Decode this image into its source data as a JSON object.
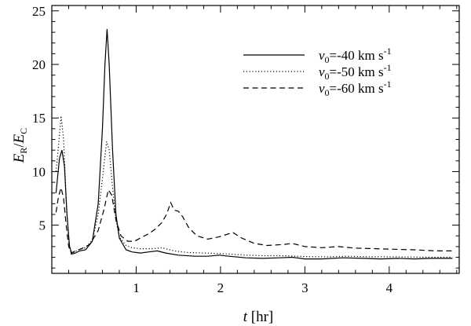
{
  "chart_data": {
    "type": "line",
    "title": "",
    "xlabel": {
      "italic": "t",
      "rest": " [hr]"
    },
    "ylabel": {
      "main1": "E",
      "sub1": "R",
      "slash": "/",
      "main2": "E",
      "sub2": "C"
    },
    "xlim": [
      0.0,
      4.83
    ],
    "ylim": [
      0.5,
      25.5
    ],
    "xticks": [
      {
        "value": 1,
        "label": "1"
      },
      {
        "value": 2,
        "label": "2"
      },
      {
        "value": 3,
        "label": "3"
      },
      {
        "value": 4,
        "label": "4"
      }
    ],
    "yticks": [
      {
        "value": 5,
        "label": "5"
      },
      {
        "value": 10,
        "label": "10"
      },
      {
        "value": 15,
        "label": "15"
      },
      {
        "value": 20,
        "label": "20"
      },
      {
        "value": 25,
        "label": "25"
      }
    ],
    "x_minor_step": 0.2,
    "y_minor_step": 1,
    "grid": false,
    "legend_position": "top-right",
    "series": [
      {
        "var": "v",
        "sub": "0",
        "label": "=-40 km s",
        "sup": "-1",
        "style": "solid",
        "color": "#000000",
        "points": [
          [
            0.05,
            8.0
          ],
          [
            0.09,
            11.2
          ],
          [
            0.12,
            12.0
          ],
          [
            0.15,
            10.5
          ],
          [
            0.18,
            6.0
          ],
          [
            0.21,
            3.0
          ],
          [
            0.24,
            2.3
          ],
          [
            0.28,
            2.4
          ],
          [
            0.33,
            2.6
          ],
          [
            0.4,
            2.7
          ],
          [
            0.48,
            3.5
          ],
          [
            0.55,
            7.0
          ],
          [
            0.6,
            14.0
          ],
          [
            0.63,
            20.0
          ],
          [
            0.655,
            23.3
          ],
          [
            0.68,
            20.0
          ],
          [
            0.72,
            12.0
          ],
          [
            0.76,
            6.0
          ],
          [
            0.8,
            3.8
          ],
          [
            0.88,
            2.7
          ],
          [
            0.95,
            2.5
          ],
          [
            1.05,
            2.4
          ],
          [
            1.15,
            2.5
          ],
          [
            1.25,
            2.6
          ],
          [
            1.35,
            2.4
          ],
          [
            1.5,
            2.2
          ],
          [
            1.7,
            2.1
          ],
          [
            1.85,
            2.1
          ],
          [
            1.98,
            2.2
          ],
          [
            2.1,
            2.1
          ],
          [
            2.3,
            1.95
          ],
          [
            2.5,
            1.9
          ],
          [
            2.7,
            1.95
          ],
          [
            2.85,
            2.0
          ],
          [
            3.0,
            1.85
          ],
          [
            3.2,
            1.85
          ],
          [
            3.45,
            1.95
          ],
          [
            3.7,
            1.9
          ],
          [
            3.9,
            1.85
          ],
          [
            4.1,
            1.9
          ],
          [
            4.3,
            1.85
          ],
          [
            4.5,
            1.9
          ],
          [
            4.75,
            1.9
          ]
        ]
      },
      {
        "var": "v",
        "sub": "0",
        "label": "=-50 km s",
        "sup": "-1",
        "style": "dotted",
        "color": "#000000",
        "points": [
          [
            0.05,
            10.0
          ],
          [
            0.08,
            12.5
          ],
          [
            0.11,
            15.2
          ],
          [
            0.14,
            13.0
          ],
          [
            0.17,
            7.5
          ],
          [
            0.2,
            3.5
          ],
          [
            0.23,
            2.3
          ],
          [
            0.27,
            2.5
          ],
          [
            0.32,
            2.7
          ],
          [
            0.4,
            2.9
          ],
          [
            0.48,
            3.6
          ],
          [
            0.55,
            6.0
          ],
          [
            0.61,
            10.0
          ],
          [
            0.65,
            12.8
          ],
          [
            0.68,
            12.0
          ],
          [
            0.72,
            8.5
          ],
          [
            0.76,
            5.5
          ],
          [
            0.8,
            3.9
          ],
          [
            0.88,
            3.1
          ],
          [
            0.95,
            2.9
          ],
          [
            1.05,
            2.8
          ],
          [
            1.2,
            2.8
          ],
          [
            1.3,
            2.9
          ],
          [
            1.45,
            2.6
          ],
          [
            1.6,
            2.45
          ],
          [
            1.8,
            2.4
          ],
          [
            1.98,
            2.35
          ],
          [
            2.1,
            2.3
          ],
          [
            2.3,
            2.2
          ],
          [
            2.5,
            2.15
          ],
          [
            2.7,
            2.15
          ],
          [
            2.9,
            2.1
          ],
          [
            3.1,
            2.05
          ],
          [
            3.3,
            2.05
          ],
          [
            3.5,
            2.1
          ],
          [
            3.8,
            2.05
          ],
          [
            4.1,
            2.05
          ],
          [
            4.4,
            2.0
          ],
          [
            4.75,
            2.0
          ]
        ]
      },
      {
        "var": "v",
        "sub": "0",
        "label": "=-60 km s",
        "sup": "-1",
        "style": "dashed",
        "color": "#000000",
        "points": [
          [
            0.05,
            6.2
          ],
          [
            0.08,
            7.7
          ],
          [
            0.11,
            8.5
          ],
          [
            0.14,
            7.5
          ],
          [
            0.17,
            5.0
          ],
          [
            0.2,
            3.0
          ],
          [
            0.23,
            2.4
          ],
          [
            0.28,
            2.6
          ],
          [
            0.35,
            2.8
          ],
          [
            0.45,
            3.2
          ],
          [
            0.55,
            4.5
          ],
          [
            0.62,
            6.5
          ],
          [
            0.67,
            8.3
          ],
          [
            0.71,
            7.8
          ],
          [
            0.76,
            5.5
          ],
          [
            0.82,
            4.0
          ],
          [
            0.9,
            3.5
          ],
          [
            0.98,
            3.5
          ],
          [
            1.05,
            3.8
          ],
          [
            1.15,
            4.2
          ],
          [
            1.22,
            4.6
          ],
          [
            1.3,
            5.2
          ],
          [
            1.36,
            6.0
          ],
          [
            1.41,
            7.1
          ],
          [
            1.45,
            6.4
          ],
          [
            1.5,
            6.3
          ],
          [
            1.55,
            5.8
          ],
          [
            1.62,
            4.8
          ],
          [
            1.72,
            4.0
          ],
          [
            1.85,
            3.7
          ],
          [
            1.98,
            3.9
          ],
          [
            2.1,
            4.2
          ],
          [
            2.15,
            4.3
          ],
          [
            2.25,
            3.8
          ],
          [
            2.4,
            3.3
          ],
          [
            2.55,
            3.1
          ],
          [
            2.75,
            3.2
          ],
          [
            2.85,
            3.3
          ],
          [
            3.0,
            3.0
          ],
          [
            3.2,
            2.9
          ],
          [
            3.4,
            3.0
          ],
          [
            3.6,
            2.85
          ],
          [
            3.85,
            2.8
          ],
          [
            4.05,
            2.75
          ],
          [
            4.3,
            2.7
          ],
          [
            4.55,
            2.6
          ],
          [
            4.75,
            2.6
          ]
        ]
      }
    ]
  }
}
